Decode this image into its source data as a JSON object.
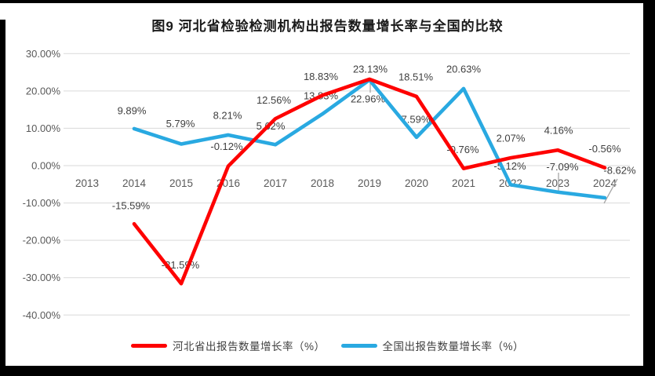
{
  "chart_data": {
    "type": "line",
    "title": "图9 河北省检验检测机构出报告数量增长率与全国的比较",
    "categories": [
      "2013",
      "2014",
      "2015",
      "2016",
      "2017",
      "2018",
      "2019",
      "2020",
      "2021",
      "2022",
      "2023",
      "2024"
    ],
    "series": [
      {
        "name": "河北省出报告数量增长率（%）",
        "color": "#fe0000",
        "values": [
          null,
          -15.59,
          -31.59,
          -0.12,
          12.56,
          18.83,
          23.13,
          18.51,
          -0.76,
          2.07,
          4.16,
          -0.56
        ]
      },
      {
        "name": "全国出报告数量增长率（%）",
        "color": "#29a9e1",
        "values": [
          null,
          9.89,
          5.79,
          8.21,
          5.62,
          13.83,
          22.96,
          7.59,
          20.63,
          -5.12,
          -7.09,
          -8.62
        ]
      }
    ],
    "y_axis": {
      "min": -40,
      "max": 30,
      "step": 10,
      "tick_labels": [
        "30.00%",
        "20.00%",
        "10.00%",
        "0.00%",
        "-10.00%",
        "-20.00%",
        "-30.00%",
        "-40.00%"
      ]
    },
    "data_label_format": "0.00%",
    "grid": true,
    "legend_position": "bottom",
    "colors": {
      "gridline": "#d9d9d9",
      "axis_text": "#595959",
      "data_label_text": "#3f3f3f",
      "leader_line": "#a6a6a6",
      "title_text": "#1a1a1a",
      "border": "#000000"
    }
  }
}
